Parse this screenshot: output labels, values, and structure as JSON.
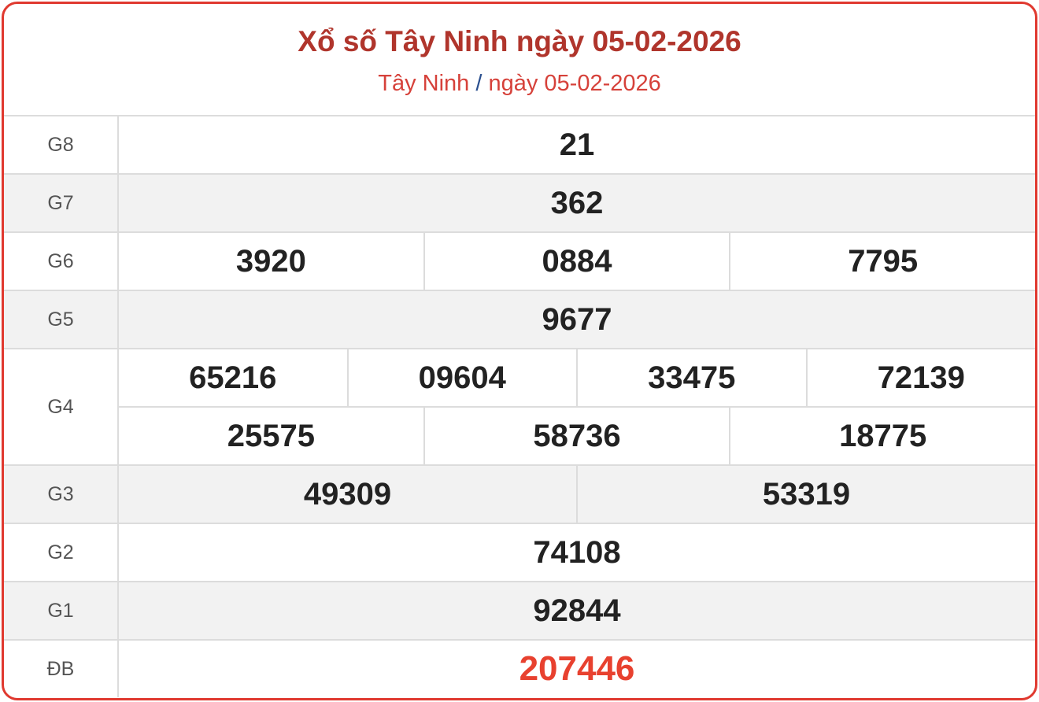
{
  "header": {
    "title": "Xổ số Tây Ninh ngày 05-02-2026",
    "breadcrumb_province": "Tây Ninh",
    "breadcrumb_separator": "/",
    "breadcrumb_date": "ngày 05-02-2026"
  },
  "prizes": [
    {
      "label": "G8",
      "rows": [
        [
          "21"
        ]
      ]
    },
    {
      "label": "G7",
      "rows": [
        [
          "362"
        ]
      ]
    },
    {
      "label": "G6",
      "rows": [
        [
          "3920",
          "0884",
          "7795"
        ]
      ]
    },
    {
      "label": "G5",
      "rows": [
        [
          "9677"
        ]
      ]
    },
    {
      "label": "G4",
      "rows": [
        [
          "65216",
          "09604",
          "33475",
          "72139"
        ],
        [
          "25575",
          "58736",
          "18775"
        ]
      ]
    },
    {
      "label": "G3",
      "rows": [
        [
          "49309",
          "53319"
        ]
      ]
    },
    {
      "label": "G2",
      "rows": [
        [
          "74108"
        ]
      ]
    },
    {
      "label": "G1",
      "rows": [
        [
          "92844"
        ]
      ]
    },
    {
      "label": "ĐB",
      "rows": [
        [
          "207446"
        ]
      ],
      "special": true
    }
  ],
  "colors": {
    "border": "#e0392f",
    "title": "#b0352c",
    "special": "#e8412f"
  }
}
